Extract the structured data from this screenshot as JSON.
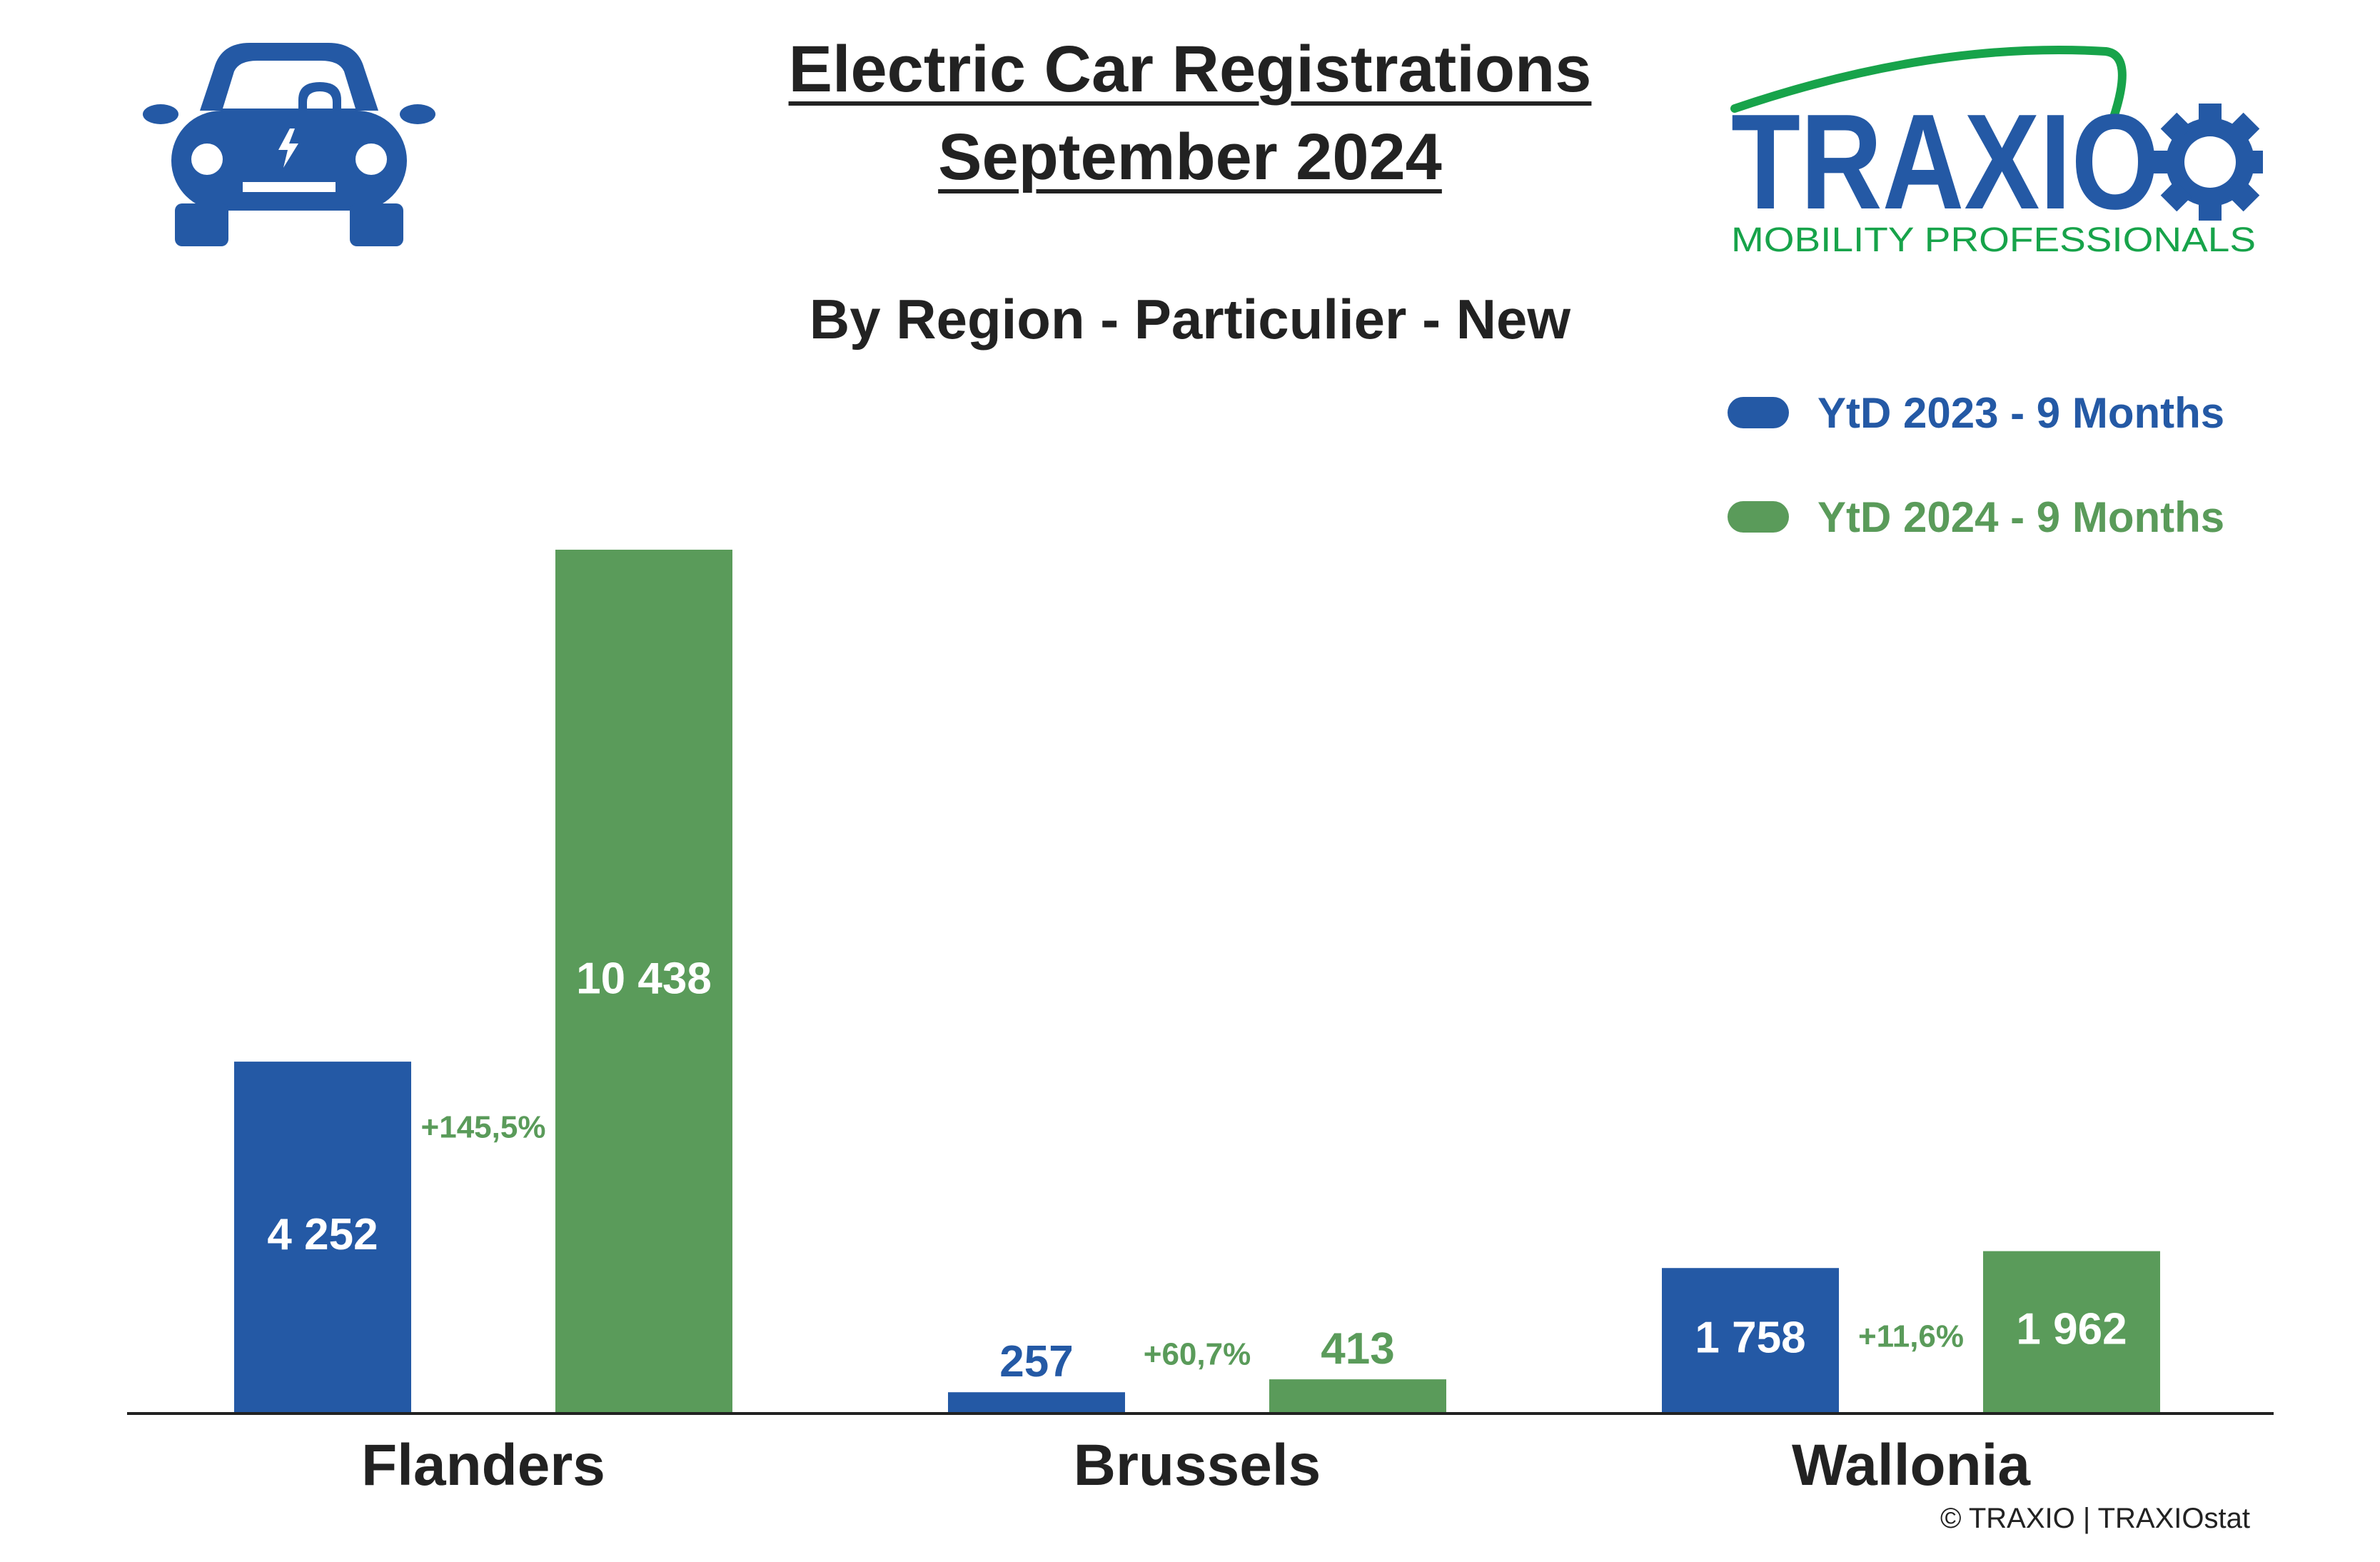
{
  "header": {
    "title_line1": "Electric Car Registrations",
    "title_line2": "September 2024",
    "subtitle": "By Region - Particulier - New"
  },
  "logo": {
    "brand": "TRAXIO",
    "tagline": "MOBILITY PROFESSIONALS"
  },
  "icons": {
    "car": "electric-car-icon",
    "logo_gear": "gear-icon"
  },
  "colors": {
    "blue": "#2459A5",
    "green": "#5A9B5A",
    "text": "#222222",
    "logo_green": "#17A34A"
  },
  "legend": [
    {
      "label": "YtD 2023 - 9 Months",
      "color": "#2459A5"
    },
    {
      "label": "YtD 2024 - 9 Months",
      "color": "#5A9B5A"
    }
  ],
  "chart_data": {
    "type": "bar",
    "categories": [
      "Flanders",
      "Brussels",
      "Wallonia"
    ],
    "series": [
      {
        "name": "YtD 2023 - 9 Months",
        "values": [
          4252,
          257,
          1758
        ],
        "labels": [
          "4 252",
          "257",
          "1 758"
        ]
      },
      {
        "name": "YtD 2024 - 9 Months",
        "values": [
          10438,
          413,
          1962
        ],
        "labels": [
          "10 438",
          "413",
          "1 962"
        ]
      }
    ],
    "growth_labels": [
      "+145,5%",
      "+60,7%",
      "+11,6%"
    ],
    "ylim": [
      0,
      10438
    ],
    "grid": false,
    "legend_position": "top-right"
  },
  "footer": {
    "copyright": "© TRAXIO | TRAXIOstat"
  }
}
